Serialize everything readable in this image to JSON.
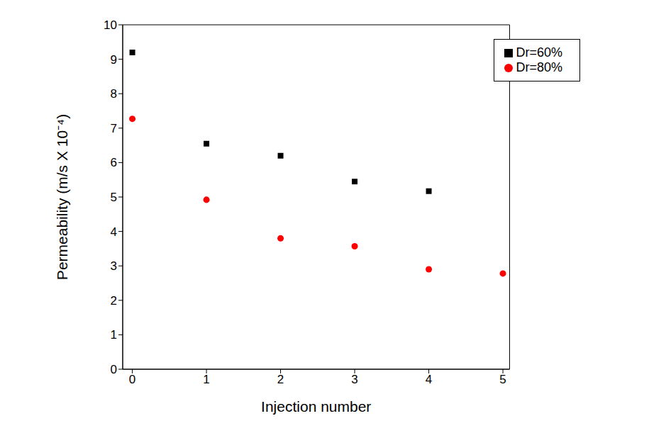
{
  "chart_data": {
    "type": "scatter",
    "x_label": "Injection number",
    "y_label": "Permeability (m/s X 10⁻⁴)",
    "x": [
      0,
      1,
      2,
      3,
      4,
      5
    ],
    "series": [
      {
        "name": "Dr=60%",
        "color": "#000000",
        "marker": "square",
        "values": [
          9.2,
          6.55,
          6.2,
          5.45,
          5.17,
          null
        ]
      },
      {
        "name": "Dr=80%",
        "color": "#ff0000",
        "marker": "circle",
        "values": [
          7.27,
          4.92,
          3.8,
          3.57,
          2.9,
          2.78
        ]
      }
    ],
    "xlim": [
      -0.13,
      5.09
    ],
    "ylim": [
      0,
      10
    ],
    "xticks": [
      0,
      1,
      2,
      3,
      4,
      5
    ],
    "yticks": [
      0,
      1,
      2,
      3,
      4,
      5,
      6,
      7,
      8,
      9,
      10
    ],
    "grid": false,
    "legend": "upper right"
  }
}
